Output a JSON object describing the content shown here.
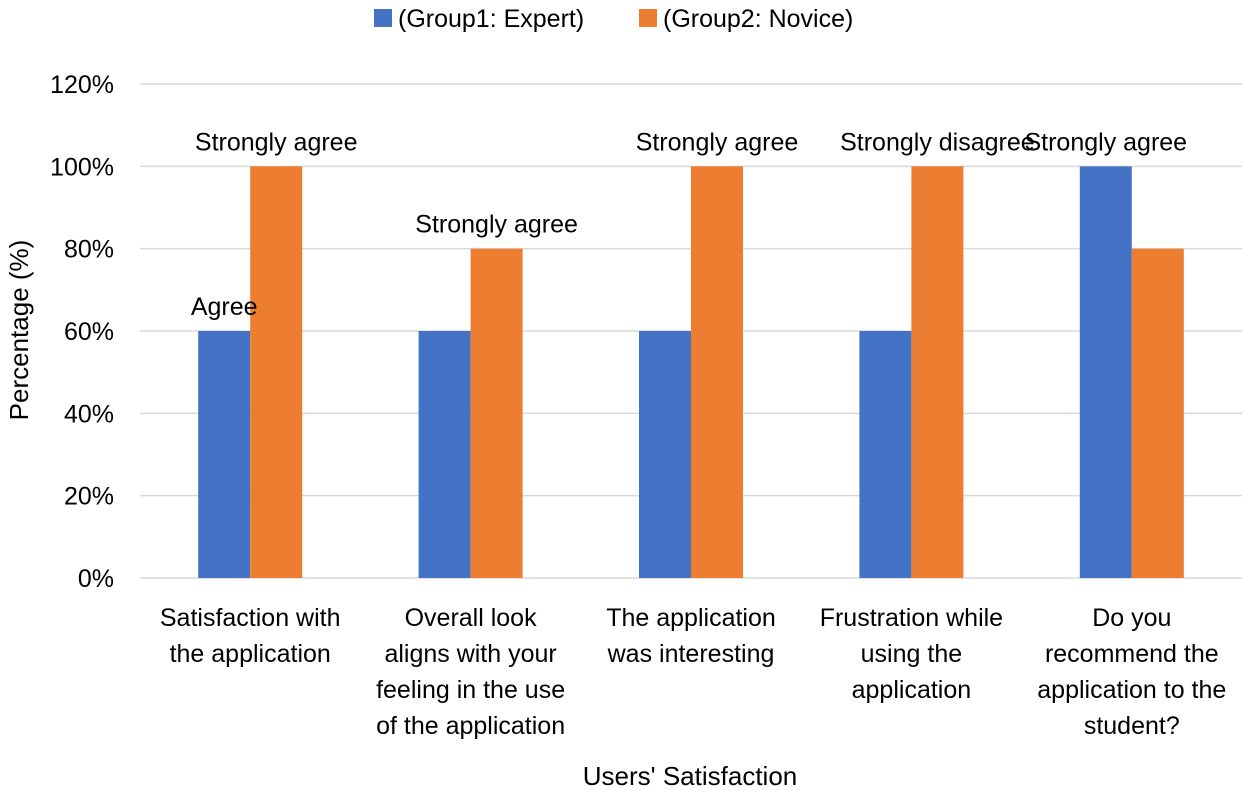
{
  "chart_data": {
    "type": "bar",
    "title": "",
    "xlabel": "Users' Satisfaction",
    "ylabel": "Percentage (%)",
    "ylim": [
      0,
      1.2
    ],
    "yticks": [
      0,
      0.2,
      0.4,
      0.6,
      0.8,
      1.0,
      1.2
    ],
    "ytick_labels": [
      "0%",
      "20%",
      "40%",
      "60%",
      "80%",
      "100%",
      "120%"
    ],
    "grid": true,
    "legend_position": "top",
    "categories": [
      [
        "Satisfaction with",
        "the application"
      ],
      [
        "Overall look",
        "aligns with your",
        "feeling in the use",
        "of the application"
      ],
      [
        "The application",
        "was interesting"
      ],
      [
        "Frustration while",
        "using the",
        "application"
      ],
      [
        "Do you",
        "recommend the",
        "application to the",
        "student?"
      ]
    ],
    "series": [
      {
        "name": "(Group1: Expert)",
        "color": "#4472c4",
        "values": [
          0.6,
          0.6,
          0.6,
          0.6,
          1.0
        ]
      },
      {
        "name": "(Group2: Novice)",
        "color": "#ed7d31",
        "values": [
          1.0,
          0.8,
          1.0,
          1.0,
          0.8
        ]
      }
    ],
    "annotations": [
      {
        "text": "Agree",
        "category": 0,
        "series": 0
      },
      {
        "text": "Strongly agree",
        "category": 0,
        "series": 1
      },
      {
        "text": "Strongly agree",
        "category": 1,
        "series": 1
      },
      {
        "text": "Strongly agree",
        "category": 2,
        "series": 1
      },
      {
        "text": "Strongly disagree",
        "category": 3,
        "series": 1
      },
      {
        "text": "Strongly agree",
        "category": 4,
        "series": 0
      }
    ]
  }
}
